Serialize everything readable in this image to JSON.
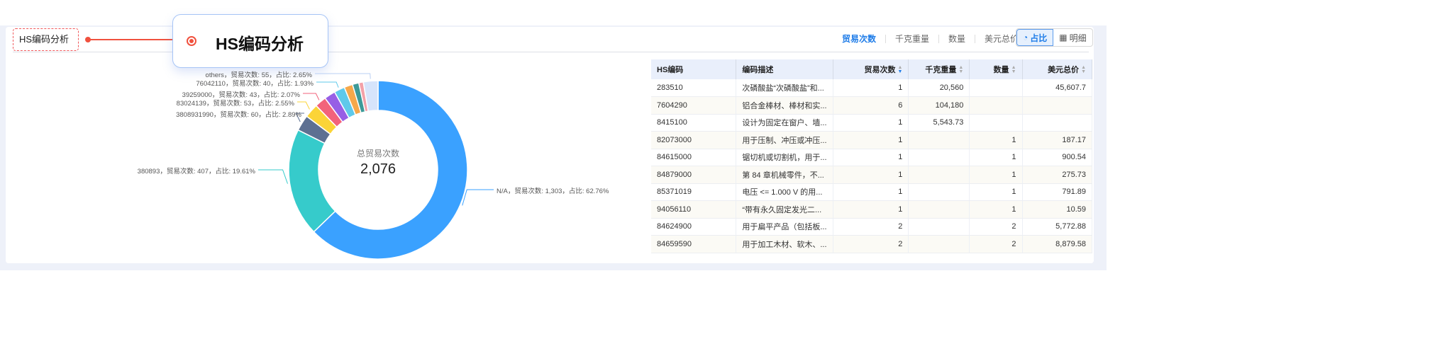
{
  "header": {
    "title": "HS编码分析",
    "callout_title": "HS编码分析"
  },
  "metric_tabs": [
    {
      "label": "贸易次数",
      "active": true
    },
    {
      "label": "千克重量"
    },
    {
      "label": "数量"
    },
    {
      "label": "美元总价"
    }
  ],
  "view_toggle": [
    {
      "label": "占比",
      "icon": "pie-icon",
      "active": true
    },
    {
      "label": "明细",
      "icon": "table-icon"
    }
  ],
  "chart_data": {
    "type": "pie",
    "donut": true,
    "center_label": "总贸易次数",
    "center_value": "2,076",
    "slices": [
      {
        "name": "N/A",
        "value": 1303,
        "percent": "62.76%",
        "color": "#3aa1ff",
        "label": "N/A，贸易次数: 1,303，占比: 62.76%"
      },
      {
        "name": "380893",
        "value": 407,
        "percent": "19.61%",
        "color": "#36cbcb",
        "label": "380893，贸易次数: 407，占比: 19.61%"
      },
      {
        "name": "3808931990",
        "value": 60,
        "percent": "2.89%",
        "color": "#5d7092",
        "label": "3808931990，贸易次数: 60，占比: 2.89%"
      },
      {
        "name": "83024139",
        "value": 53,
        "percent": "2.55%",
        "color": "#fbd437",
        "label": "83024139，贸易次数: 53，占比: 2.55%"
      },
      {
        "name": "39259000",
        "value": 43,
        "percent": "2.07%",
        "color": "#f2637b",
        "label": "39259000，贸易次数: 43，占比: 2.07%"
      },
      {
        "name": "",
        "value": 42,
        "color": "#975fe5"
      },
      {
        "name": "76042110",
        "value": 40,
        "percent": "1.93%",
        "color": "#5fc9ea",
        "label": "76042110，贸易次数: 40，占比: 1.93%"
      },
      {
        "name": "",
        "value": 32,
        "color": "#f6a84a"
      },
      {
        "name": "",
        "value": 24,
        "color": "#3d9a98"
      },
      {
        "name": "",
        "value": 17,
        "color": "#f3a1a8"
      },
      {
        "name": "others",
        "value": 55,
        "percent": "2.65%",
        "color": "#d6e4fb",
        "label": "others，贸易次数: 55，占比: 2.65%"
      }
    ]
  },
  "table": {
    "columns": [
      "HS编码",
      "编码描述",
      "贸易次数",
      "千克重量",
      "数量",
      "美元总价"
    ],
    "rows": [
      [
        "283510",
        "次磷酸盐“次磷酸盐”和...",
        "1",
        "20,560",
        "",
        "45,607.7"
      ],
      [
        "7604290",
        "铝合金棒材、棒材和实...",
        "6",
        "104,180",
        "",
        ""
      ],
      [
        "8415100",
        "设计为固定在窗户、墙...",
        "1",
        "5,543.73",
        "",
        ""
      ],
      [
        "82073000",
        "用于压制、冲压或冲压...",
        "1",
        "",
        "1",
        "187.17"
      ],
      [
        "84615000",
        "锯切机或切割机，用于...",
        "1",
        "",
        "1",
        "900.54"
      ],
      [
        "84879000",
        "第 84 章机械零件，不...",
        "1",
        "",
        "1",
        "275.73"
      ],
      [
        "85371019",
        "电压 <= 1.000 V 的用...",
        "1",
        "",
        "1",
        "791.89"
      ],
      [
        "94056110",
        "“带有永久固定发光二...",
        "1",
        "",
        "1",
        "10.59"
      ],
      [
        "84624900",
        "用于扁平产品（包括板...",
        "2",
        "",
        "2",
        "5,772.88"
      ],
      [
        "84659590",
        "用于加工木材、软木、...",
        "2",
        "",
        "2",
        "8,879.58"
      ]
    ]
  }
}
